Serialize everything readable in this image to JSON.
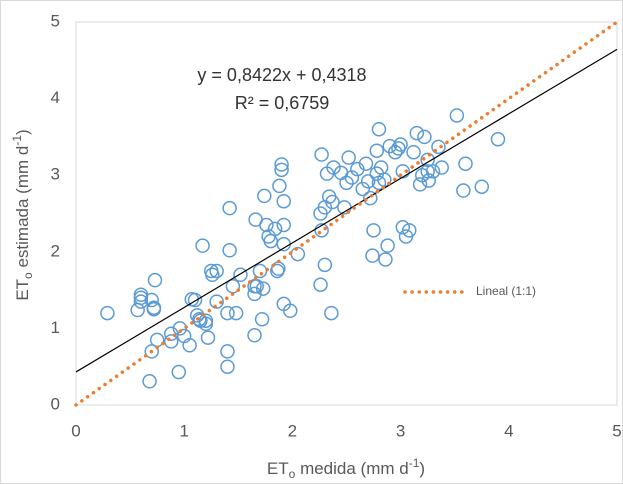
{
  "chart_data": {
    "type": "scatter",
    "x_label": [
      "ET",
      "o",
      " medida (mm d",
      "-1",
      ")"
    ],
    "y_label": [
      "ET",
      "o",
      " estimada (mm d",
      "-1",
      ")"
    ],
    "annotations": [
      "y = 0,8422x + 0,4318",
      "R² = 0,6759"
    ],
    "xlim": [
      0,
      5
    ],
    "ylim": [
      0,
      5
    ],
    "xticks": [
      0,
      1,
      2,
      3,
      4,
      5
    ],
    "yticks": [
      0,
      1,
      2,
      3,
      4,
      5
    ],
    "grid": false,
    "series": [
      {
        "kind": "points",
        "color": "#5b9bd5",
        "x": [
          0.29,
          0.57,
          0.6,
          0.6,
          0.6,
          0.7,
          0.72,
          0.72,
          0.73,
          0.68,
          0.7,
          0.75,
          0.88,
          0.88,
          0.95,
          0.96,
          1.0,
          1.05,
          1.07,
          1.1,
          1.12,
          1.14,
          1.15,
          1.17,
          1.2,
          1.2,
          1.22,
          1.25,
          1.26,
          1.3,
          1.3,
          1.4,
          1.4,
          1.4,
          1.42,
          1.42,
          1.45,
          1.48,
          1.52,
          1.65,
          1.65,
          1.65,
          1.66,
          1.67,
          1.7,
          1.72,
          1.73,
          1.74,
          1.76,
          1.78,
          1.8,
          1.84,
          1.86,
          1.87,
          1.88,
          1.9,
          1.9,
          1.92,
          1.92,
          1.92,
          1.92,
          1.98,
          2.05,
          2.26,
          2.26,
          2.27,
          2.27,
          2.3,
          2.3,
          2.32,
          2.34,
          2.36,
          2.37,
          2.38,
          2.45,
          2.48,
          2.5,
          2.52,
          2.55,
          2.6,
          2.65,
          2.68,
          2.7,
          2.72,
          2.74,
          2.75,
          2.78,
          2.78,
          2.8,
          2.8,
          2.82,
          2.85,
          2.86,
          2.88,
          2.9,
          2.95,
          2.98,
          3.0,
          3.02,
          3.02,
          3.05,
          3.08,
          3.12,
          3.15,
          3.18,
          3.2,
          3.22,
          3.25,
          3.25,
          3.26,
          3.3,
          3.35,
          3.38,
          3.52,
          3.58,
          3.6,
          3.75,
          3.9
        ],
        "values": [
          1.2,
          1.24,
          1.35,
          1.4,
          1.44,
          1.37,
          1.27,
          1.25,
          1.63,
          0.31,
          0.7,
          0.85,
          0.83,
          0.93,
          0.43,
          1.0,
          0.9,
          0.78,
          1.38,
          1.37,
          1.17,
          1.12,
          1.1,
          2.08,
          1.06,
          1.1,
          0.88,
          1.75,
          1.7,
          1.75,
          1.35,
          0.7,
          0.5,
          1.2,
          2.57,
          2.02,
          1.55,
          1.2,
          1.7,
          0.91,
          1.45,
          1.55,
          2.42,
          1.55,
          1.75,
          1.12,
          1.52,
          2.73,
          2.35,
          2.2,
          2.14,
          2.3,
          1.75,
          1.78,
          2.86,
          3.14,
          3.07,
          2.66,
          2.35,
          2.1,
          1.32,
          1.23,
          1.97,
          2.5,
          1.57,
          3.27,
          2.28,
          2.58,
          1.83,
          3.02,
          2.72,
          1.2,
          2.65,
          3.1,
          3.03,
          2.58,
          2.9,
          3.23,
          2.97,
          3.08,
          2.82,
          3.15,
          2.92,
          2.7,
          1.95,
          2.28,
          3.02,
          3.32,
          3.6,
          2.9,
          3.1,
          2.94,
          1.9,
          2.08,
          3.38,
          3.3,
          3.35,
          3.4,
          3.05,
          2.32,
          2.2,
          2.28,
          3.3,
          3.55,
          2.88,
          3.0,
          3.5,
          3.05,
          3.2,
          2.93,
          3.05,
          3.37,
          3.1,
          3.78,
          2.8,
          3.15,
          2.85,
          3.47
        ]
      },
      {
        "kind": "trend",
        "color": "#000000",
        "x": [
          0,
          5
        ],
        "values": [
          0.4318,
          4.6428
        ]
      },
      {
        "kind": "dotted",
        "name": "Lineal (1:1)",
        "color": "#ed7d31",
        "x": [
          0,
          5
        ],
        "values": [
          0,
          5
        ]
      }
    ]
  }
}
